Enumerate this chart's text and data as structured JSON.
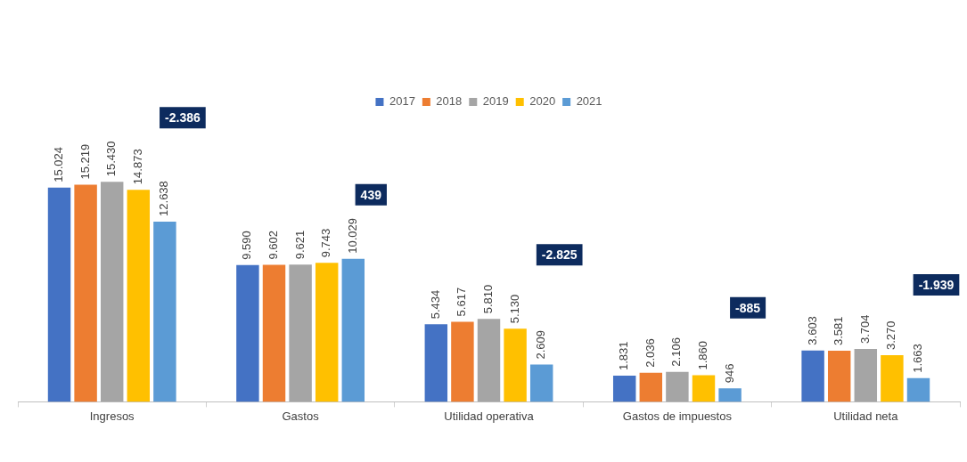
{
  "chart_data": {
    "type": "bar",
    "categories": [
      "Ingresos",
      "Gastos",
      "Utilidad operativa",
      "Gastos de impuestos",
      "Utilidad neta"
    ],
    "series": [
      {
        "name": "2017",
        "color": "#4472c4",
        "values": [
          15024,
          9590,
          5434,
          1831,
          3603
        ],
        "value_labels": [
          "15.024",
          "9.590",
          "5.434",
          "1.831",
          "3.603"
        ]
      },
      {
        "name": "2018",
        "color": "#ed7d31",
        "values": [
          15219,
          9602,
          5617,
          2036,
          3581
        ],
        "value_labels": [
          "15.219",
          "9.602",
          "5.617",
          "2.036",
          "3.581"
        ]
      },
      {
        "name": "2019",
        "color": "#a5a5a5",
        "values": [
          15430,
          9621,
          5810,
          2106,
          3704
        ],
        "value_labels": [
          "15.430",
          "9.621",
          "5.810",
          "2.106",
          "3.704"
        ]
      },
      {
        "name": "2020",
        "color": "#ffc000",
        "values": [
          14873,
          9743,
          5130,
          1860,
          3270
        ],
        "value_labels": [
          "14.873",
          "9.743",
          "5.130",
          "1.860",
          "3.270"
        ]
      },
      {
        "name": "2021",
        "color": "#5b9bd5",
        "values": [
          12638,
          10029,
          2609,
          946,
          1663
        ],
        "value_labels": [
          "12.638",
          "10.029",
          "2.609",
          "946",
          "1.663"
        ]
      }
    ],
    "annotations": [
      "-2.386",
      "439",
      "-2.825",
      "-885",
      "-1.939"
    ],
    "legend": "top",
    "grid": false
  }
}
